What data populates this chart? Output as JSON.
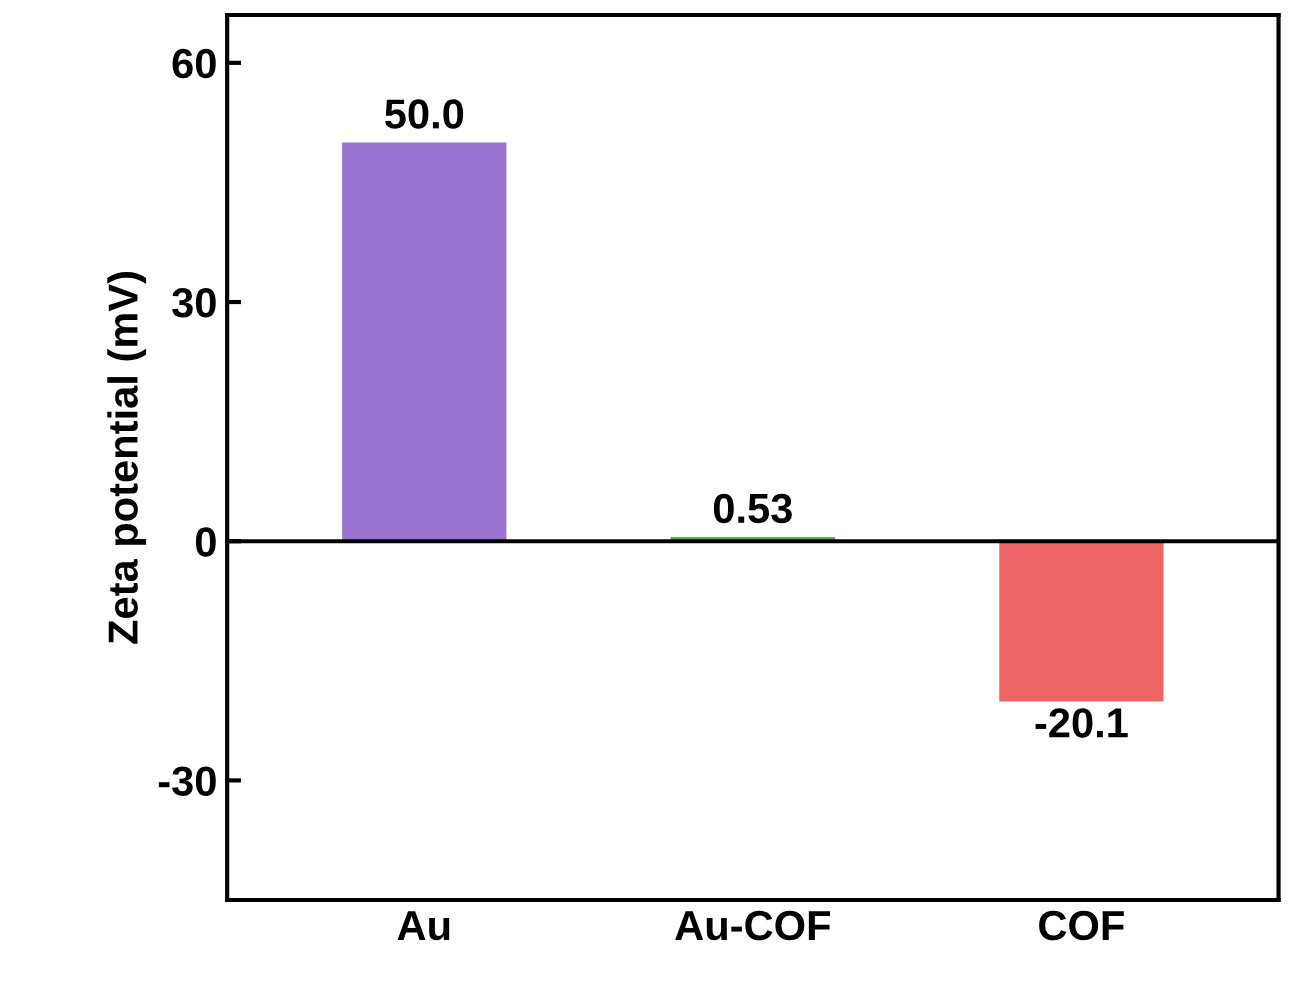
{
  "chart_data": {
    "type": "bar",
    "ylabel": "Zeta potential (mV)",
    "categories": [
      "Au",
      "Au-COF",
      "COF"
    ],
    "values": [
      50.0,
      0.53,
      -20.1
    ],
    "colors": [
      "#9a72cf",
      "#5aa85a",
      "#ec6666"
    ],
    "ylim": [
      -45,
      66
    ],
    "yticks": [
      -30,
      0,
      30,
      60
    ],
    "ref_lines": [
      {
        "axis": "y",
        "value": 0,
        "color": "#000000"
      }
    ],
    "value_labels": [
      "50.0",
      "0.53",
      "-20.1"
    ],
    "grid": false,
    "legend": false
  }
}
